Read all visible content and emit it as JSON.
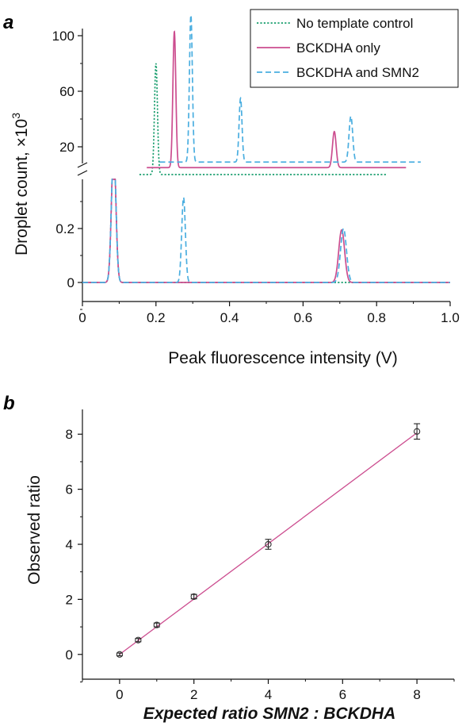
{
  "panels": [
    {
      "letter": "a"
    },
    {
      "letter": "b"
    }
  ],
  "chart_data": [
    {
      "type": "line",
      "panel": "a",
      "xlabel": "Peak fluorescence intensity (V)",
      "ylabel_main": "Droplet count, ×10",
      "ylabel_sup": "3",
      "xlim": [
        0,
        1.0
      ],
      "x_ticks": [
        0,
        0.2,
        0.4,
        0.6,
        0.8,
        1.0
      ],
      "x_tick_labels": [
        "0",
        "0.2",
        "0.4",
        "0.6",
        "0.8",
        "1.0"
      ],
      "y_lower_ticks": [
        0,
        0.2
      ],
      "y_lower_tick_labels": [
        "0",
        "0.2"
      ],
      "y_upper_ticks": [
        20,
        60,
        100
      ],
      "y_upper_tick_labels": [
        "20",
        "60",
        "100"
      ],
      "legend_position": "top-right",
      "series": [
        {
          "name": "No template control",
          "color": "#1a9e6e",
          "dash": "dotted",
          "lower_peaks": [
            {
              "center": 0.085,
              "height": 0.5,
              "width": 0.006
            }
          ],
          "upper_offset": 0.12,
          "upper_baseline": 0,
          "upper_peaks": [
            {
              "center": 0.2,
              "height": 80,
              "width": 0.004
            }
          ],
          "upper_range": [
            0.155,
            0.83
          ]
        },
        {
          "name": "BCKDHA only",
          "color": "#cc4d8f",
          "dash": "solid",
          "lower_peaks": [
            {
              "center": 0.085,
              "height": 0.5,
              "width": 0.006
            },
            {
              "center": 0.705,
              "height": 0.195,
              "width": 0.008
            }
          ],
          "upper_offset": 0.165,
          "upper_baseline": 5,
          "upper_peaks": [
            {
              "center": 0.25,
              "height": 98,
              "width": 0.004
            },
            {
              "center": 0.685,
              "height": 26,
              "width": 0.005
            }
          ],
          "upper_range": [
            0.175,
            0.88
          ]
        },
        {
          "name": "BCKDHA and SMN2",
          "color": "#4aaee0",
          "dash": "dashed",
          "lower_peaks": [
            {
              "center": 0.085,
              "height": 0.5,
              "width": 0.006
            },
            {
              "center": 0.275,
              "height": 0.315,
              "width": 0.005
            },
            {
              "center": 0.71,
              "height": 0.2,
              "width": 0.008
            }
          ],
          "upper_offset": 0.21,
          "upper_baseline": 9,
          "upper_peaks": [
            {
              "center": 0.295,
              "height": 106,
              "width": 0.004
            },
            {
              "center": 0.43,
              "height": 46,
              "width": 0.004
            },
            {
              "center": 0.73,
              "height": 33,
              "width": 0.005
            }
          ],
          "upper_range": [
            0.21,
            0.92
          ]
        }
      ]
    },
    {
      "type": "scatter",
      "panel": "b",
      "xlabel": "Expected ratio SMN2 : BCKDHA",
      "ylabel": "Observed ratio",
      "xlim": [
        -1,
        9
      ],
      "ylim": [
        -0.9,
        8.9
      ],
      "x_ticks": [
        0,
        2,
        4,
        6,
        8
      ],
      "x_tick_labels": [
        "0",
        "2",
        "4",
        "6",
        "8"
      ],
      "y_ticks": [
        0,
        2,
        4,
        6,
        8
      ],
      "y_tick_labels": [
        "0",
        "2",
        "4",
        "6",
        "8"
      ],
      "points": [
        {
          "x": 0,
          "y": 0.0,
          "err": 0.05
        },
        {
          "x": 0.5,
          "y": 0.52,
          "err": 0.06
        },
        {
          "x": 1,
          "y": 1.07,
          "err": 0.07
        },
        {
          "x": 2,
          "y": 2.1,
          "err": 0.08
        },
        {
          "x": 4,
          "y": 4.0,
          "err": 0.18
        },
        {
          "x": 8,
          "y": 8.1,
          "err": 0.28
        }
      ],
      "fit_line": {
        "x": [
          0,
          8
        ],
        "y": [
          0,
          8.05
        ],
        "color": "#cc4d8f"
      }
    }
  ]
}
